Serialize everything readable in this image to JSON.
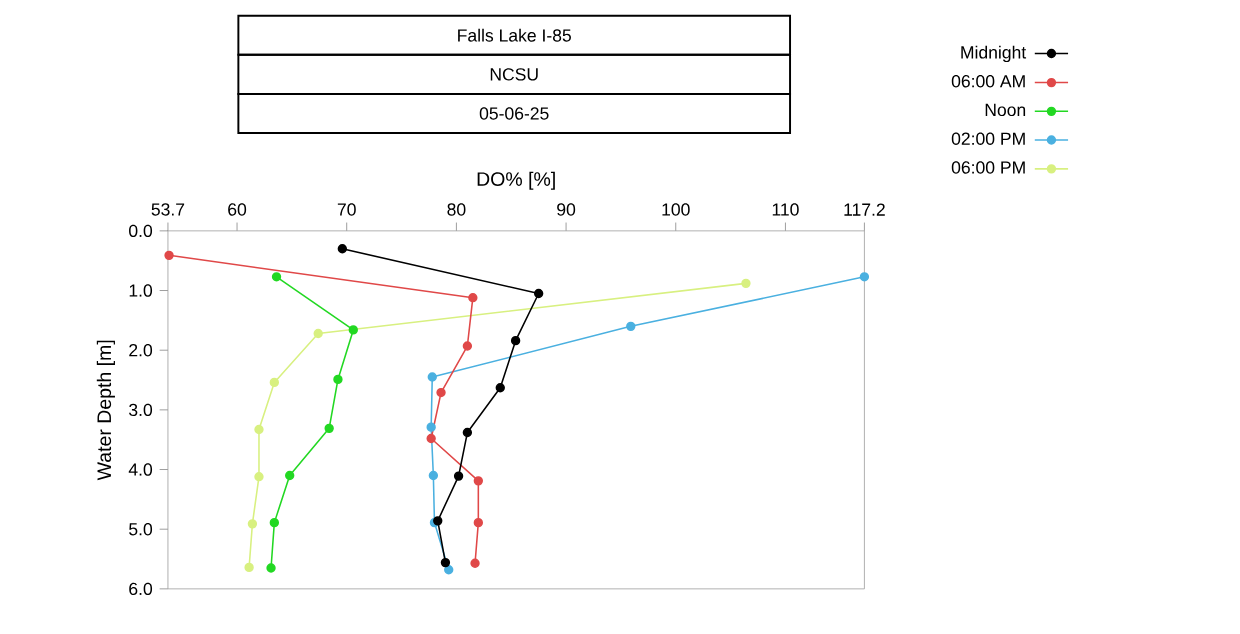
{
  "chart_data": {
    "type": "line",
    "title": "Falls Lake I-85",
    "subtitle": "NCSU",
    "annotations": [
      "05-06-25"
    ],
    "xlabel": "DO% [%]",
    "ylabel": "Water Depth [m]",
    "xlim": [
      53.7,
      117.2
    ],
    "xticks": [
      53.7,
      60,
      70,
      80,
      90,
      100,
      110,
      117.2
    ],
    "ylim": [
      6,
      0
    ],
    "yticks": [
      {
        "value": 0,
        "label": "0.0"
      },
      {
        "value": 1,
        "label": "1.0"
      },
      {
        "value": 2,
        "label": "2.0"
      },
      {
        "value": 3,
        "label": "3.0"
      },
      {
        "value": 4,
        "label": "4.0"
      },
      {
        "value": 5,
        "label": "5.0"
      },
      {
        "value": 6,
        "label": "6.0"
      }
    ],
    "marker": "circle",
    "legend": "right",
    "grid": false,
    "series": [
      {
        "name": "Midnight",
        "color": "#000000",
        "x": [
          69.6,
          87.5,
          85.4,
          84.0,
          81.0,
          80.2,
          78.3,
          79.0
        ],
        "values": [
          0.3,
          1.05,
          1.84,
          2.63,
          3.38,
          4.11,
          4.86,
          5.56
        ]
      },
      {
        "name": "06:00 AM",
        "color": "#e04848",
        "x": [
          53.8,
          81.5,
          81.0,
          78.6,
          77.7,
          82.0,
          82.0,
          81.7
        ],
        "values": [
          0.41,
          1.12,
          1.93,
          2.71,
          3.48,
          4.19,
          4.89,
          5.57
        ]
      },
      {
        "name": "Noon",
        "color": "#22d822",
        "x": [
          63.6,
          70.6,
          69.2,
          68.4,
          64.8,
          63.4,
          63.1
        ],
        "values": [
          0.77,
          1.66,
          2.49,
          3.31,
          4.1,
          4.89,
          5.65
        ]
      },
      {
        "name": "02:00 PM",
        "color": "#4ab0e0",
        "x": [
          117.2,
          95.9,
          77.8,
          77.7,
          77.9,
          78.0,
          79.3
        ],
        "values": [
          0.77,
          1.6,
          2.45,
          3.29,
          4.1,
          4.89,
          5.68
        ]
      },
      {
        "name": "06:00 PM",
        "color": "#d8f080",
        "x": [
          106.4,
          67.4,
          63.4,
          62.0,
          62.0,
          61.4,
          61.1
        ],
        "values": [
          0.88,
          1.72,
          2.54,
          3.33,
          4.12,
          4.91,
          5.64
        ]
      }
    ]
  }
}
